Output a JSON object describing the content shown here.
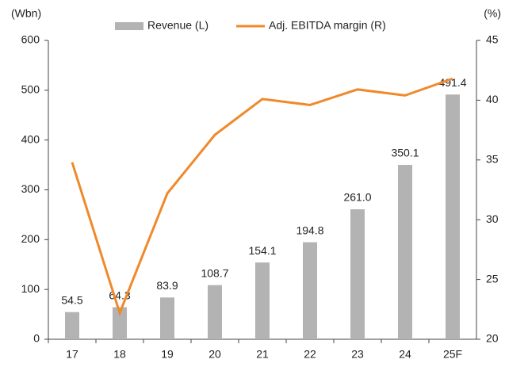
{
  "chart_data": {
    "type": "bar_line",
    "y_unit_left": "(Wbn)",
    "y_unit_right": "(%)",
    "categories": [
      "17",
      "18",
      "19",
      "20",
      "21",
      "22",
      "23",
      "24",
      "25F"
    ],
    "series": [
      {
        "name": "Revenue (L)",
        "type": "bar",
        "color": "#b3b3b3",
        "axis": "y",
        "values": [
          54.5,
          64.3,
          83.9,
          108.7,
          154.1,
          194.8,
          261.0,
          350.1,
          491.4
        ],
        "value_labels": [
          "54.5",
          "64.3",
          "83.9",
          "108.7",
          "154.1",
          "194.8",
          "261.0",
          "350.1",
          "491.4"
        ]
      },
      {
        "name": "Adj. EBITDA margin (R)",
        "type": "line",
        "color": "#f0892a",
        "axis": "y2",
        "values": [
          34.8,
          22.2,
          32.2,
          37.1,
          40.1,
          39.6,
          40.9,
          40.4,
          41.8
        ]
      }
    ],
    "ylim": [
      0,
      600
    ],
    "yticks": [
      0,
      100,
      200,
      300,
      400,
      500,
      600
    ],
    "y2lim": [
      20,
      45
    ],
    "y2ticks": [
      20,
      25,
      30,
      35,
      40,
      45
    ]
  }
}
